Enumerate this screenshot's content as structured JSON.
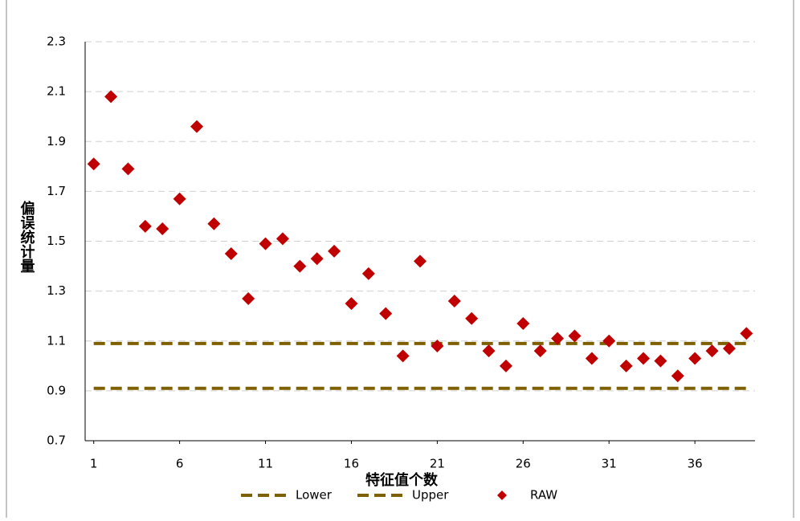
{
  "chart_data": {
    "type": "scatter",
    "y_label": "偏误统计量",
    "x_label": "特征值个数",
    "x": [
      1,
      2,
      3,
      4,
      5,
      6,
      7,
      8,
      9,
      10,
      11,
      12,
      13,
      14,
      15,
      16,
      17,
      18,
      19,
      20,
      21,
      22,
      23,
      24,
      25,
      26,
      27,
      28,
      29,
      30,
      31,
      32,
      33,
      34,
      35,
      36,
      37,
      38,
      39
    ],
    "series": [
      {
        "name": "Lower",
        "color": "#7f6000",
        "style": "dashed-line",
        "values": [
          0.91,
          0.91,
          0.91,
          0.91,
          0.91,
          0.91,
          0.91,
          0.91,
          0.91,
          0.91,
          0.91,
          0.91,
          0.91,
          0.91,
          0.91,
          0.91,
          0.91,
          0.91,
          0.91,
          0.91,
          0.91,
          0.91,
          0.91,
          0.91,
          0.91,
          0.91,
          0.91,
          0.91,
          0.91,
          0.91,
          0.91,
          0.91,
          0.91,
          0.91,
          0.91,
          0.91,
          0.91,
          0.91,
          0.91
        ]
      },
      {
        "name": "Upper",
        "color": "#7f6000",
        "style": "dashed-line",
        "values": [
          1.09,
          1.09,
          1.09,
          1.09,
          1.09,
          1.09,
          1.09,
          1.09,
          1.09,
          1.09,
          1.09,
          1.09,
          1.09,
          1.09,
          1.09,
          1.09,
          1.09,
          1.09,
          1.09,
          1.09,
          1.09,
          1.09,
          1.09,
          1.09,
          1.09,
          1.09,
          1.09,
          1.09,
          1.09,
          1.09,
          1.09,
          1.09,
          1.09,
          1.09,
          1.09,
          1.09,
          1.09,
          1.09,
          1.09
        ]
      },
      {
        "name": "RAW",
        "color": "#c00000",
        "style": "diamond",
        "values": [
          1.81,
          2.08,
          1.79,
          1.56,
          1.55,
          1.67,
          1.96,
          1.57,
          1.45,
          1.27,
          1.49,
          1.51,
          1.4,
          1.43,
          1.46,
          1.25,
          1.37,
          1.21,
          1.04,
          1.42,
          1.08,
          1.26,
          1.19,
          1.06,
          1.0,
          1.17,
          1.06,
          1.11,
          1.12,
          1.03,
          1.1,
          1.0,
          1.03,
          1.02,
          0.96,
          1.03,
          1.06,
          1.07,
          1.13
        ]
      }
    ],
    "xlim": [
      0.5,
      39.5
    ],
    "xticks": [
      1,
      6,
      11,
      16,
      21,
      26,
      31,
      36
    ],
    "ylim": [
      0.7,
      2.3
    ],
    "yticks": [
      0.7,
      0.9,
      1.1,
      1.3,
      1.5,
      1.7,
      1.9,
      2.1,
      2.3
    ],
    "grid": true,
    "legend": "bottom"
  }
}
